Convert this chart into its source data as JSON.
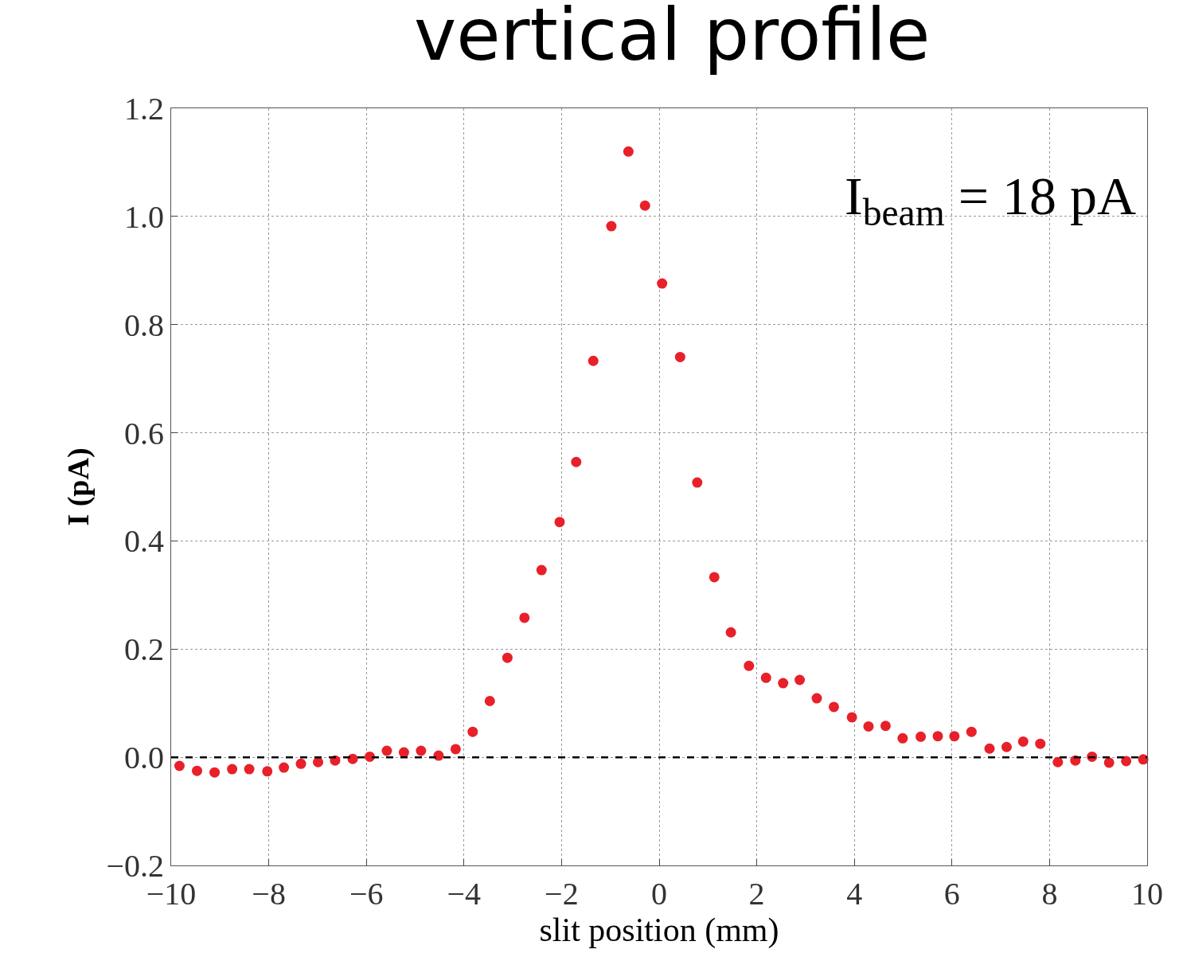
{
  "chart_data": {
    "type": "scatter",
    "title": "vertical profile",
    "xlabel": "slit position (mm)",
    "ylabel": "I (pA)",
    "annotations": [
      "I$_{beam}$ = 18 pA"
    ],
    "x": [
      -9.83,
      -9.47,
      -9.11,
      -8.75,
      -8.4,
      -8.03,
      -7.69,
      -7.34,
      -6.99,
      -6.64,
      -6.28,
      -5.93,
      -5.58,
      -5.23,
      -4.88,
      -4.52,
      -4.17,
      -3.82,
      -3.47,
      -3.11,
      -2.76,
      -2.41,
      -2.04,
      -1.7,
      -1.35,
      -0.98,
      -0.63,
      -0.29,
      0.06,
      0.43,
      0.78,
      1.13,
      1.47,
      1.84,
      2.19,
      2.54,
      2.88,
      3.23,
      3.58,
      3.95,
      4.29,
      4.64,
      4.99,
      5.36,
      5.71,
      6.05,
      6.4,
      6.77,
      7.12,
      7.46,
      7.81,
      8.17,
      8.53,
      8.87,
      9.22,
      9.57,
      9.92
    ],
    "series": [
      {
        "color": "#e8202a",
        "values": [
          -0.016,
          -0.025,
          -0.028,
          -0.022,
          -0.022,
          -0.026,
          -0.019,
          -0.012,
          -0.009,
          -0.006,
          -0.003,
          0.001,
          0.012,
          0.009,
          0.012,
          0.003,
          0.015,
          0.047,
          0.104,
          0.184,
          0.258,
          0.346,
          0.435,
          0.546,
          0.733,
          0.982,
          1.12,
          1.02,
          0.876,
          0.74,
          0.508,
          0.333,
          0.231,
          0.169,
          0.147,
          0.137,
          0.143,
          0.109,
          0.093,
          0.074,
          0.057,
          0.058,
          0.035,
          0.038,
          0.039,
          0.039,
          0.047,
          0.016,
          0.019,
          0.029,
          0.025,
          -0.009,
          -0.006,
          0.001,
          -0.01,
          -0.007,
          -0.004
        ]
      }
    ],
    "marker": "circle",
    "xlim": [
      -10,
      10
    ],
    "xticks": [
      {
        "value": -10,
        "label": "−10"
      },
      {
        "value": -8,
        "label": "−8"
      },
      {
        "value": -6,
        "label": "−6"
      },
      {
        "value": -4,
        "label": "−4"
      },
      {
        "value": -2,
        "label": "−2"
      },
      0,
      2,
      4,
      6,
      8,
      10
    ],
    "ylim": [
      -0.2,
      1.2
    ],
    "yticks": [
      {
        "value": -0.2,
        "label": "−0.2"
      },
      {
        "value": 0,
        "label": "0.0"
      },
      0.2,
      0.4,
      0.6,
      0.8,
      {
        "value": 1,
        "label": "1.0"
      },
      1.2
    ],
    "ref_lines": [
      {
        "axis": "y",
        "value": 0,
        "color": "#000000",
        "line_style": "dashed"
      }
    ],
    "grid": true
  }
}
